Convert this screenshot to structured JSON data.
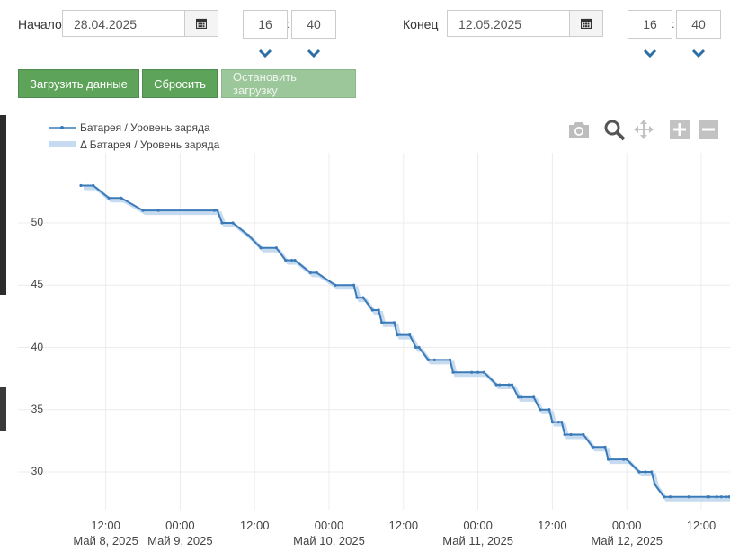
{
  "form": {
    "start_label": "Начало",
    "start_date": "28.04.2025",
    "start_hour": "16",
    "start_minute": "40",
    "end_label": "Конец",
    "end_date": "12.05.2025",
    "end_hour": "16",
    "end_minute": "40",
    "time_separator": ":"
  },
  "buttons": {
    "load": "Загрузить данные",
    "reset": "Сбросить",
    "stop": "Остановить загрузку"
  },
  "colors": {
    "button_green": "#5ea35a",
    "series_line": "#3a7ab8",
    "delta_fill": "#c6dbef"
  },
  "toolbar": [
    "camera-icon",
    "zoom-icon",
    "pan-icon",
    "zoom-in-icon",
    "zoom-out-icon"
  ],
  "chart_data": {
    "type": "line",
    "legend": [
      "Батарея / Уровень заряда",
      "Δ Батарея / Уровень заряда"
    ],
    "legend_position": "top-left",
    "grid": true,
    "x_ticks": [
      "12:00",
      "00:00",
      "12:00",
      "00:00",
      "12:00",
      "00:00",
      "12:00",
      "00:00",
      "12:00"
    ],
    "x_date_labels": [
      "Май 8, 2025",
      "Май 9, 2025",
      "Май 10, 2025",
      "Май 11, 2025",
      "Май 12, 2025"
    ],
    "y_ticks": [
      30,
      35,
      40,
      45,
      50
    ],
    "ylim": [
      27,
      55
    ],
    "xlim": [
      "2025-05-08 08:00",
      "2025-05-12 18:30"
    ],
    "series": [
      {
        "name": "Батарея / Уровень заряда",
        "x": [
          "2025-05-08 08:00",
          "2025-05-08 10:00",
          "2025-05-08 12:30",
          "2025-05-08 14:30",
          "2025-05-08 18:00",
          "2025-05-08 20:30",
          "2025-05-09 05:30",
          "2025-05-09 06:00",
          "2025-05-09 06:45",
          "2025-05-09 08:30",
          "2025-05-09 11:00",
          "2025-05-09 13:00",
          "2025-05-09 15:30",
          "2025-05-09 17:00",
          "2025-05-09 18:00",
          "2025-05-09 18:30",
          "2025-05-09 21:00",
          "2025-05-09 22:00",
          "2025-05-10 01:00",
          "2025-05-10 04:00",
          "2025-05-10 04:30",
          "2025-05-10 05:30",
          "2025-05-10 07:00",
          "2025-05-10 08:00",
          "2025-05-10 08:30",
          "2025-05-10 10:30",
          "2025-05-10 11:00",
          "2025-05-10 13:00",
          "2025-05-10 14:00",
          "2025-05-10 14:30",
          "2025-05-10 16:00",
          "2025-05-10 17:00",
          "2025-05-10 19:30",
          "2025-05-10 20:00",
          "2025-05-10 23:00",
          "2025-05-11 00:00",
          "2025-05-11 01:00",
          "2025-05-11 03:00",
          "2025-05-11 03:30",
          "2025-05-11 05:00",
          "2025-05-11 05:30",
          "2025-05-11 06:30",
          "2025-05-11 07:00",
          "2025-05-11 09:00",
          "2025-05-11 10:00",
          "2025-05-11 11:30",
          "2025-05-11 12:00",
          "2025-05-11 13:00",
          "2025-05-11 13:30",
          "2025-05-11 14:00",
          "2025-05-11 15:00",
          "2025-05-11 17:00",
          "2025-05-11 18:30",
          "2025-05-11 20:30",
          "2025-05-11 21:00",
          "2025-05-11 23:30",
          "2025-05-12 00:00",
          "2025-05-12 02:00",
          "2025-05-12 03:00",
          "2025-05-12 04:00",
          "2025-05-12 04:30",
          "2025-05-12 06:00",
          "2025-05-12 07:00",
          "2025-05-12 10:00",
          "2025-05-12 13:00",
          "2025-05-12 13:15",
          "2025-05-12 14:30",
          "2025-05-12 15:15",
          "2025-05-12 16:00",
          "2025-05-12 16:30",
          "2025-05-12 17:00",
          "2025-05-12 17:30",
          "2025-05-12 18:00",
          "2025-05-12 18:30",
          "2025-05-12 19:00"
        ],
        "y": [
          53,
          53,
          52,
          52,
          51,
          51,
          51,
          51,
          50,
          50,
          49,
          48,
          48,
          47,
          47,
          47,
          46,
          46,
          45,
          45,
          44,
          44,
          43,
          43,
          42,
          42,
          41,
          41,
          40,
          40,
          39,
          39,
          39,
          38,
          38,
          38,
          38,
          37,
          37,
          37,
          37,
          36,
          36,
          36,
          35,
          35,
          34,
          34,
          34,
          33,
          33,
          33,
          32,
          32,
          31,
          31,
          31,
          30,
          30,
          30,
          29,
          28,
          28,
          28,
          28,
          28,
          28,
          28,
          28,
          28,
          28,
          28,
          28,
          28,
          28
        ]
      }
    ]
  }
}
